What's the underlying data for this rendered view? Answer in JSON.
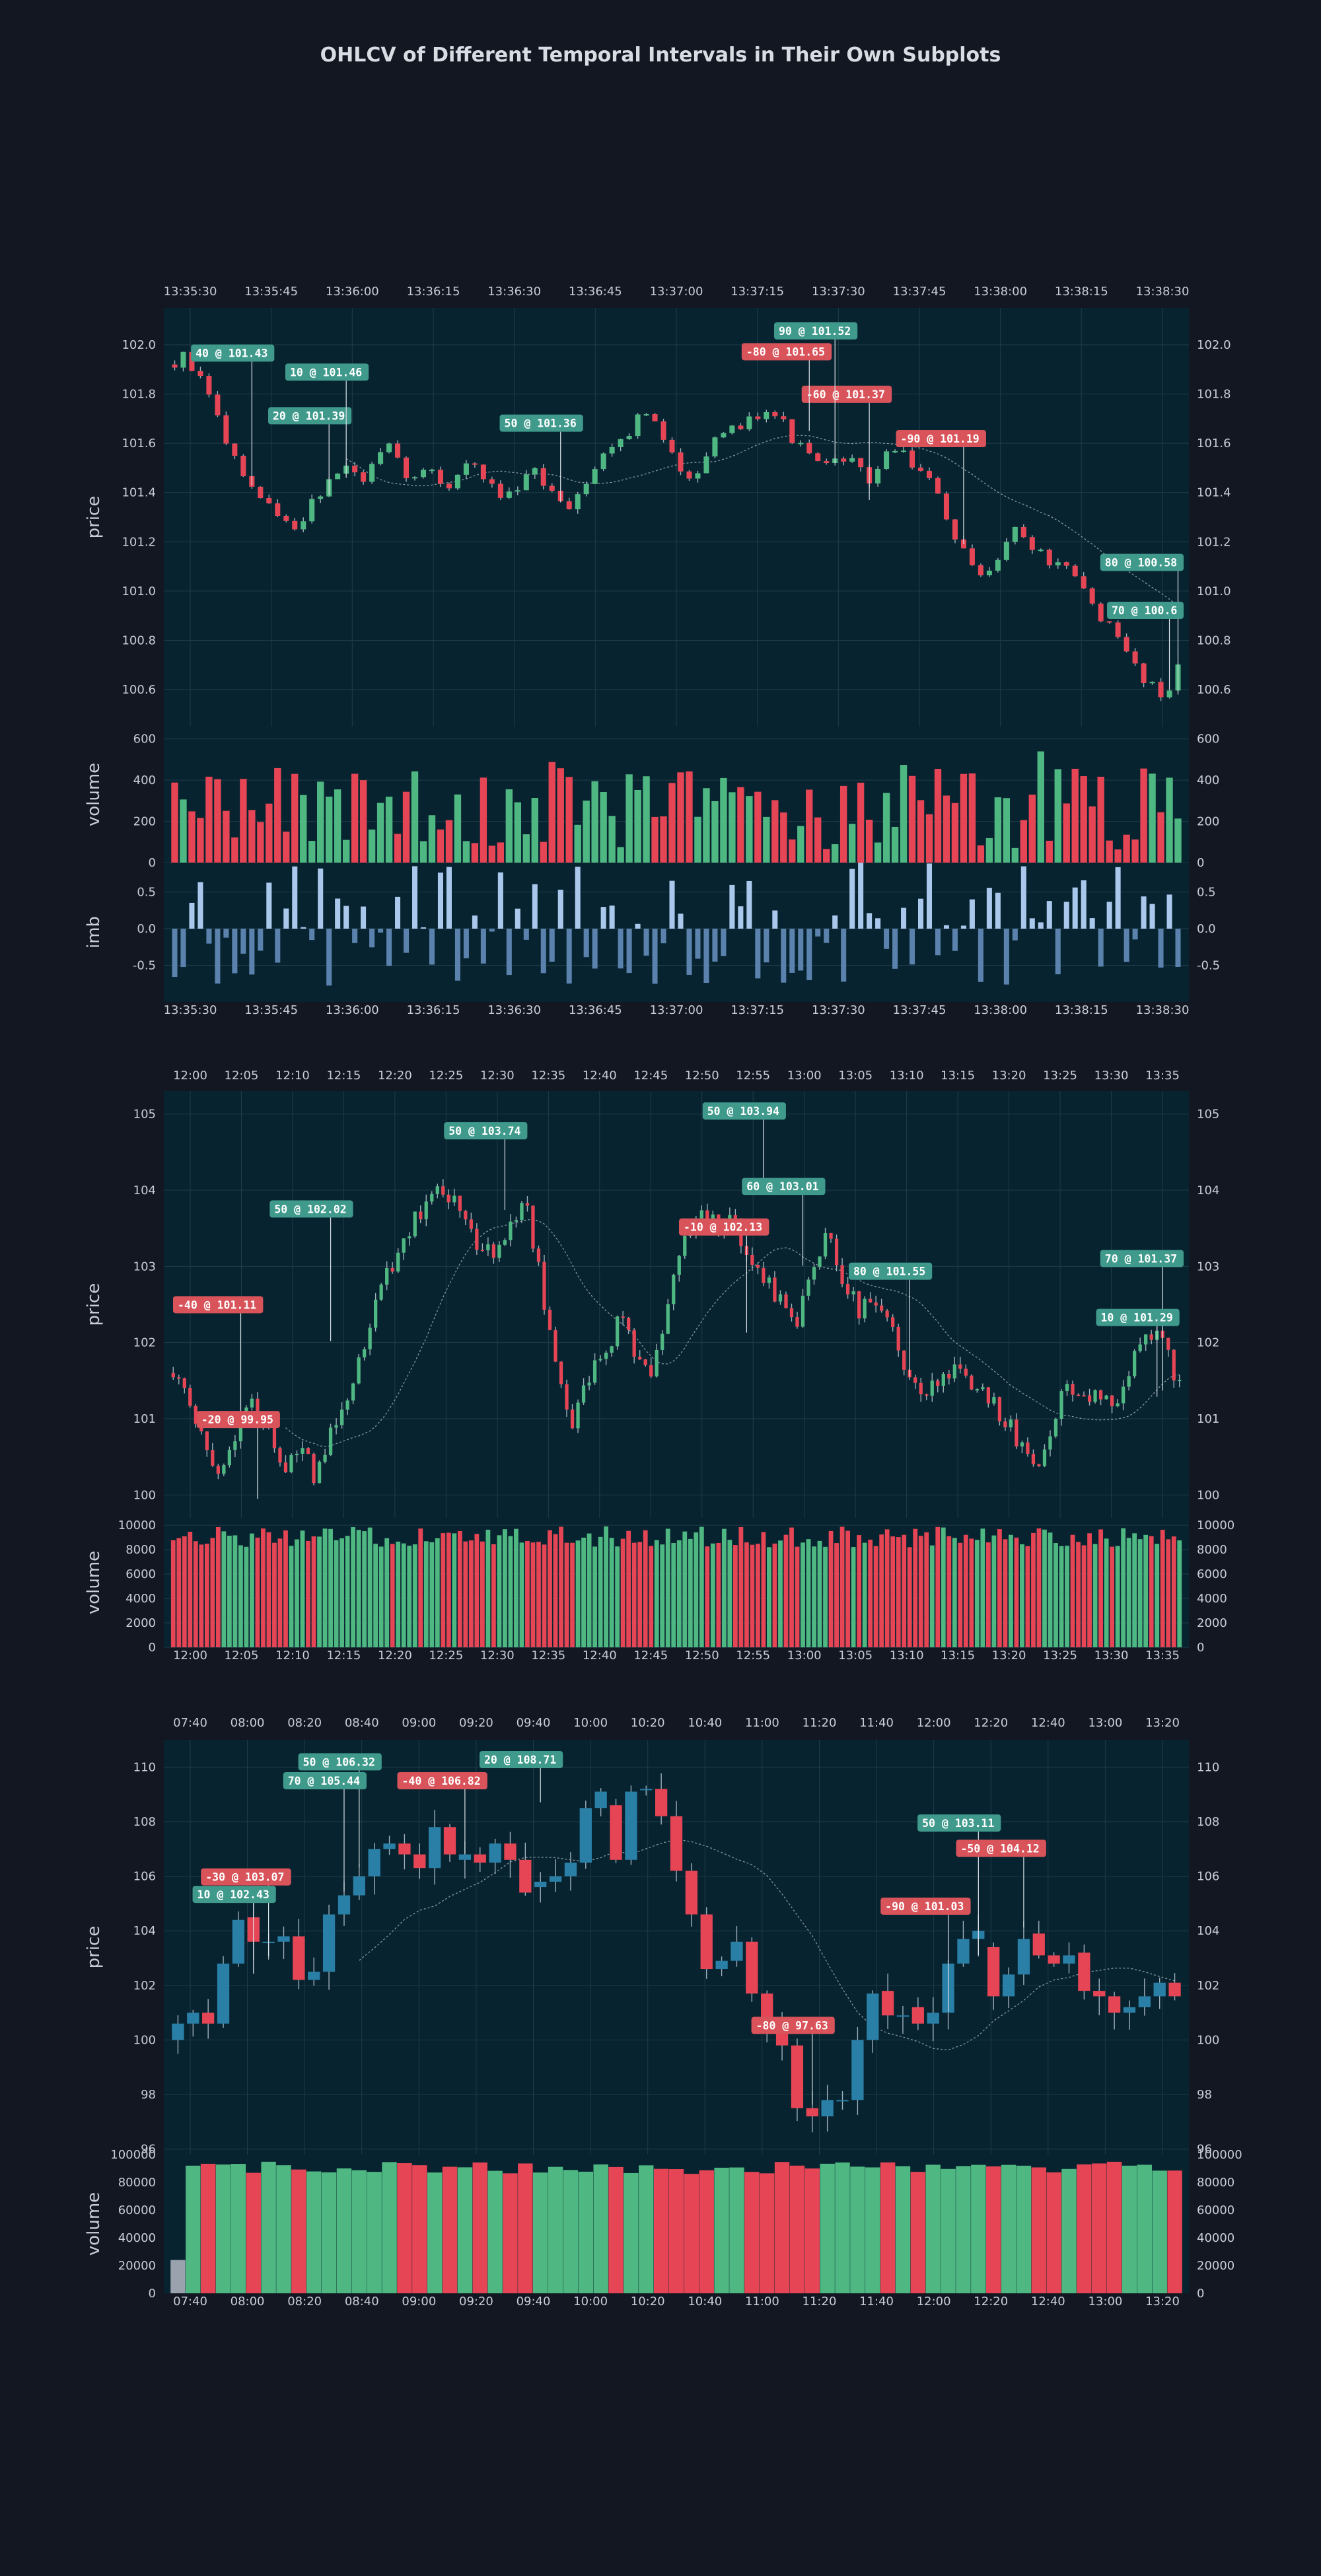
{
  "title": "OHLCV of Different Temporal Intervals in Their Own Subplots",
  "colors": {
    "background": "#121722",
    "panel": "#072330",
    "up": "#4fb882",
    "down": "#e54554",
    "flat": "#9aa3ad",
    "panel3_up": "#2a7fa6",
    "grid": "#1f3c48",
    "imb_pos": "#a9c8ec",
    "imb_neg": "#5a82ad",
    "label_pos": "#3f9a8c",
    "label_neg": "#d9535a",
    "ma": "#a9b4bd"
  },
  "chart_data": [
    {
      "type": "candlestick",
      "interval": "seconds",
      "x_ticks": [
        "13:35:30",
        "13:35:45",
        "13:36:00",
        "13:36:15",
        "13:36:30",
        "13:36:45",
        "13:37:00",
        "13:37:15",
        "13:37:30",
        "13:37:45",
        "13:38:00",
        "13:38:15",
        "13:38:30"
      ],
      "price": {
        "ylabel": "price",
        "ylim": [
          100.45,
          102.15
        ],
        "yticks": [
          "100.6",
          "100.8",
          "101.0",
          "101.2",
          "101.4",
          "101.6",
          "101.8",
          "102.0"
        ],
        "path": [
          101.92,
          101.95,
          101.9,
          101.85,
          101.8,
          101.7,
          101.6,
          101.55,
          101.45,
          101.4,
          101.38,
          101.35,
          101.3,
          101.28,
          101.25,
          101.3,
          101.38,
          101.4,
          101.45,
          101.48,
          101.5,
          101.48,
          101.45,
          101.5,
          101.55,
          101.58,
          101.52,
          101.48,
          101.45,
          101.48,
          101.5,
          101.45,
          101.42,
          101.48,
          101.52,
          101.5,
          101.45,
          101.42,
          101.4,
          101.38,
          101.42,
          101.45,
          101.48,
          101.44,
          101.4,
          101.38,
          101.35,
          101.4,
          101.45,
          101.5,
          101.55,
          101.6,
          101.62,
          101.65,
          101.7,
          101.72,
          101.68,
          101.6,
          101.55,
          101.5,
          101.48,
          101.5,
          101.55,
          101.6,
          101.62,
          101.65,
          101.68,
          101.7,
          101.72,
          101.75,
          101.72,
          101.68,
          101.62,
          101.58,
          101.55,
          101.52,
          101.5,
          101.52,
          101.55,
          101.52,
          101.48,
          101.45,
          101.5,
          101.55,
          101.58,
          101.56,
          101.52,
          101.48,
          101.44,
          101.4,
          101.3,
          101.2,
          101.15,
          101.1,
          101.05,
          101.1,
          101.15,
          101.2,
          101.25,
          101.22,
          101.18,
          101.15,
          101.12,
          101.1,
          101.08,
          101.05,
          101.0,
          100.95,
          100.9,
          100.85,
          100.8,
          100.75,
          100.7,
          100.65,
          100.62,
          100.58,
          100.62,
          100.68
        ]
      },
      "volume": {
        "ylabel": "volume",
        "ylim": [
          0,
          660
        ],
        "yticks": [
          "0",
          "200",
          "400",
          "600"
        ]
      },
      "imbalance": {
        "ylabel": "imb",
        "ylim": [
          -1.0,
          0.9
        ],
        "yticks": [
          "-0.5",
          "0.0",
          "0.5"
        ]
      },
      "annotations": [
        {
          "text": "20 @ 101.39",
          "kind": "pos",
          "idx": 18
        },
        {
          "text": "10 @ 101.46",
          "kind": "pos",
          "idx": 20
        },
        {
          "text": "40 @ 101.43",
          "kind": "pos",
          "idx": 9
        },
        {
          "text": "50 @ 101.36",
          "kind": "pos",
          "idx": 45
        },
        {
          "text": "-60 @ 101.37",
          "kind": "neg",
          "idx": 81
        },
        {
          "text": "90 @ 101.52",
          "kind": "pos",
          "idx": 77
        },
        {
          "text": "-80 @ 101.65",
          "kind": "neg",
          "idx": 74
        },
        {
          "text": "-90 @ 101.19",
          "kind": "neg",
          "idx": 92
        },
        {
          "text": "80 @ 100.58",
          "kind": "pos",
          "idx": 117
        },
        {
          "text": "70 @ 100.6",
          "kind": "pos",
          "idx": 116
        }
      ]
    },
    {
      "type": "candlestick",
      "interval": "minutes",
      "x_ticks": [
        "12:00",
        "12:05",
        "12:10",
        "12:15",
        "12:20",
        "12:25",
        "12:30",
        "12:35",
        "12:40",
        "12:45",
        "12:50",
        "12:55",
        "13:00",
        "13:05",
        "13:10",
        "13:15",
        "13:20",
        "13:25",
        "13:30",
        "13:35"
      ],
      "price": {
        "ylabel": "price",
        "ylim": [
          99.7,
          105.3
        ],
        "yticks": [
          "100",
          "101",
          "102",
          "103",
          "104",
          "105"
        ],
        "path": [
          101.6,
          101.2,
          100.6,
          100.3,
          100.9,
          101.2,
          100.8,
          100.3,
          100.6,
          100.2,
          100.9,
          101.3,
          102.0,
          102.7,
          103.2,
          103.6,
          103.9,
          104.0,
          103.7,
          103.3,
          103.1,
          103.4,
          103.9,
          102.8,
          101.6,
          101.0,
          101.5,
          101.9,
          102.3,
          101.8,
          101.5,
          102.5,
          103.3,
          103.9,
          103.5,
          103.6,
          103.2,
          102.8,
          102.6,
          102.3,
          102.9,
          103.4,
          102.8,
          102.4,
          102.6,
          102.1,
          101.6,
          101.3,
          101.6,
          101.7,
          101.5,
          101.3,
          101.0,
          100.7,
          100.2,
          100.9,
          101.5,
          101.2,
          101.3,
          101.1,
          101.7,
          102.2,
          102.0,
          101.4
        ],
        "count": 180
      },
      "volume": {
        "ylabel": "volume",
        "ylim": [
          0,
          10600
        ],
        "yticks": [
          "0",
          "2000",
          "4000",
          "6000",
          "8000",
          "10000"
        ]
      },
      "annotations": [
        {
          "text": "-20 @ 99.95",
          "kind": "neg",
          "idx": 15
        },
        {
          "text": "-40 @ 101.11",
          "kind": "neg",
          "idx": 12
        },
        {
          "text": "50 @ 102.02",
          "kind": "pos",
          "idx": 28
        },
        {
          "text": "50 @ 103.74",
          "kind": "pos",
          "idx": 59
        },
        {
          "text": "-10 @ 102.13",
          "kind": "neg",
          "idx": 102
        },
        {
          "text": "50 @ 103.94",
          "kind": "pos",
          "idx": 105
        },
        {
          "text": "60 @ 103.01",
          "kind": "pos",
          "idx": 112
        },
        {
          "text": "80 @ 101.55",
          "kind": "pos",
          "idx": 131
        },
        {
          "text": "70 @ 101.37",
          "kind": "pos",
          "idx": 176
        },
        {
          "text": "10 @ 101.29",
          "kind": "pos",
          "idx": 175
        }
      ]
    },
    {
      "type": "candlestick",
      "interval": "20-minute",
      "x_ticks": [
        "07:40",
        "08:00",
        "08:20",
        "08:40",
        "09:00",
        "09:20",
        "09:40",
        "10:00",
        "10:20",
        "10:40",
        "11:00",
        "11:20",
        "11:40",
        "12:00",
        "12:20",
        "12:40",
        "13:00",
        "13:20"
      ],
      "price": {
        "ylabel": "price",
        "ylim": [
          95.8,
          111.0
        ],
        "yticks": [
          "96",
          "98",
          "100",
          "102",
          "104",
          "106",
          "108",
          "110"
        ],
        "candles": [
          [
            100.0,
            100.6
          ],
          [
            100.6,
            101.0
          ],
          [
            101.0,
            100.6
          ],
          [
            100.6,
            102.8
          ],
          [
            102.8,
            104.4
          ],
          [
            104.5,
            103.6
          ],
          [
            103.6,
            103.6
          ],
          [
            103.6,
            103.8
          ],
          [
            103.8,
            102.2
          ],
          [
            102.2,
            102.5
          ],
          [
            102.5,
            104.6
          ],
          [
            104.6,
            105.3
          ],
          [
            105.3,
            106.0
          ],
          [
            106.0,
            107.0
          ],
          [
            107.0,
            107.2
          ],
          [
            107.2,
            106.8
          ],
          [
            106.8,
            106.3
          ],
          [
            106.3,
            107.8
          ],
          [
            107.8,
            106.8
          ],
          [
            106.6,
            106.8
          ],
          [
            106.8,
            106.5
          ],
          [
            106.5,
            107.2
          ],
          [
            107.2,
            106.6
          ],
          [
            106.6,
            105.4
          ],
          [
            105.6,
            105.8
          ],
          [
            105.8,
            106.0
          ],
          [
            106.0,
            106.5
          ],
          [
            106.5,
            108.5
          ],
          [
            108.5,
            109.1
          ],
          [
            108.6,
            106.6
          ],
          [
            106.6,
            109.1
          ],
          [
            109.2,
            109.2
          ],
          [
            109.2,
            108.2
          ],
          [
            108.2,
            106.2
          ],
          [
            106.2,
            104.6
          ],
          [
            104.6,
            102.6
          ],
          [
            102.6,
            102.9
          ],
          [
            102.9,
            103.6
          ],
          [
            103.6,
            101.7
          ],
          [
            101.7,
            100.4
          ],
          [
            100.4,
            99.8
          ],
          [
            99.8,
            97.5
          ],
          [
            97.5,
            97.2
          ],
          [
            97.2,
            97.8
          ],
          [
            97.8,
            97.8
          ],
          [
            97.8,
            100.0
          ],
          [
            100.0,
            101.7
          ],
          [
            101.8,
            100.9
          ],
          [
            100.9,
            100.9
          ],
          [
            101.2,
            100.6
          ],
          [
            100.6,
            101.0
          ],
          [
            101.0,
            102.8
          ],
          [
            102.8,
            103.7
          ],
          [
            103.7,
            104.0
          ],
          [
            103.4,
            101.6
          ],
          [
            101.6,
            102.4
          ],
          [
            102.4,
            103.7
          ],
          [
            103.9,
            103.1
          ],
          [
            103.1,
            102.8
          ],
          [
            102.8,
            103.1
          ],
          [
            103.2,
            101.8
          ],
          [
            101.8,
            101.6
          ],
          [
            101.6,
            101.0
          ],
          [
            101.0,
            101.2
          ],
          [
            101.2,
            101.6
          ],
          [
            101.6,
            102.1
          ],
          [
            102.1,
            101.6
          ]
        ]
      },
      "volume": {
        "ylabel": "volume",
        "ylim": [
          0,
          100000
        ],
        "yticks": [
          "0",
          "20000",
          "40000",
          "60000",
          "80000",
          "100000"
        ]
      },
      "annotations": [
        {
          "text": "-30 @ 103.07",
          "kind": "neg",
          "idx": 6
        },
        {
          "text": "50 @ 106.32",
          "kind": "pos",
          "idx": 12
        },
        {
          "text": "70 @ 105.44",
          "kind": "pos",
          "idx": 11
        },
        {
          "text": "10 @ 102.43",
          "kind": "pos",
          "idx": 5
        },
        {
          "text": "-40 @ 106.82",
          "kind": "neg",
          "idx": 19
        },
        {
          "text": "20 @ 108.71",
          "kind": "pos",
          "idx": 24
        },
        {
          "text": "-80 @ 97.63",
          "kind": "neg",
          "idx": 42
        },
        {
          "text": "-90 @ 101.03",
          "kind": "neg",
          "idx": 51
        },
        {
          "text": "50 @ 103.11",
          "kind": "pos",
          "idx": 53
        },
        {
          "text": "-50 @ 104.12",
          "kind": "neg",
          "idx": 56
        }
      ]
    }
  ]
}
